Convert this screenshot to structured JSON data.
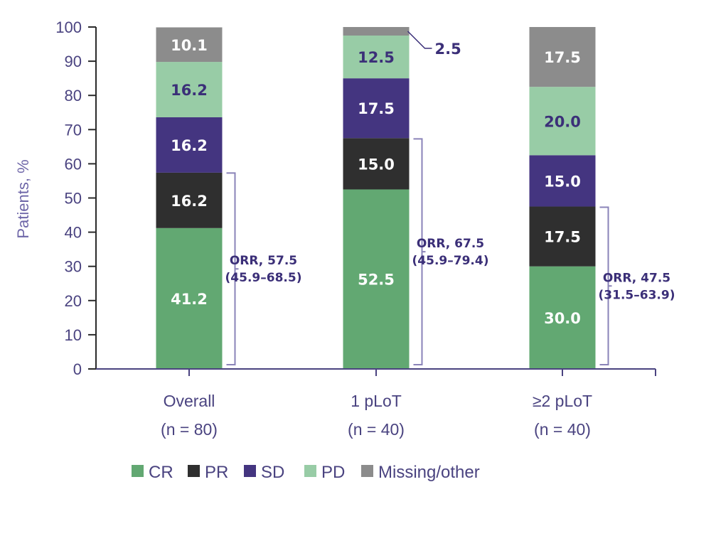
{
  "chart_data": {
    "type": "bar",
    "stacked": true,
    "title": "",
    "xlabel": "",
    "ylabel": "Patients, %",
    "ylim": [
      0,
      100
    ],
    "yticks": [
      0,
      10,
      20,
      30,
      40,
      50,
      60,
      70,
      80,
      90,
      100
    ],
    "grid": false,
    "categories": [
      {
        "name": "Overall",
        "n_label": "(n = 80)"
      },
      {
        "name": "1 pLoT",
        "n_label": "(n = 40)"
      },
      {
        "name": "≥2 pLoT",
        "n_label": "(n = 40)"
      }
    ],
    "series": [
      {
        "name": "CR",
        "color": "#62a872",
        "label_color": "#ffffff",
        "values": [
          41.2,
          52.5,
          30.0
        ],
        "labels": [
          "41.2",
          "52.5",
          "30.0"
        ]
      },
      {
        "name": "PR",
        "color": "#2f2f2f",
        "label_color": "#ffffff",
        "values": [
          16.2,
          15.0,
          17.5
        ],
        "labels": [
          "16.2",
          "15.0",
          "17.5"
        ]
      },
      {
        "name": "SD",
        "color": "#443580",
        "label_color": "#ffffff",
        "values": [
          16.2,
          17.5,
          15.0
        ],
        "labels": [
          "16.2",
          "17.5",
          "15.0"
        ]
      },
      {
        "name": "PD",
        "color": "#98cca6",
        "label_color": "#3b2f78",
        "values": [
          16.2,
          12.5,
          20.0
        ],
        "labels": [
          "16.2",
          "12.5",
          "20.0"
        ]
      },
      {
        "name": "Missing/other",
        "color": "#8c8c8c",
        "label_color": "#ffffff",
        "values": [
          10.1,
          2.5,
          17.5
        ],
        "labels": [
          "10.1",
          "2.5",
          "17.5"
        ]
      }
    ],
    "annotations": [
      {
        "category": "Overall",
        "orr_label": "ORR, 57.5",
        "ci_label": "(45.9–68.5)",
        "range": [
          0,
          57.5
        ]
      },
      {
        "category": "1 pLoT",
        "orr_label": "ORR, 67.5",
        "ci_label": "(45.9–79.4)",
        "range": [
          0,
          67.5
        ]
      },
      {
        "category": "≥2 pLoT",
        "orr_label": "ORR, 47.5",
        "ci_label": "(31.5–63.9)",
        "range": [
          0,
          47.5
        ]
      }
    ],
    "legend": {
      "placement": "bottom",
      "items": [
        "CR",
        "PR",
        "SD",
        "PD",
        "Missing/other"
      ]
    },
    "colors": {
      "axis_text": "#4a4380",
      "axis_line": "#2a2a2a",
      "x_axis_line": "#4a4380",
      "bracket": "#8a83b8"
    }
  }
}
